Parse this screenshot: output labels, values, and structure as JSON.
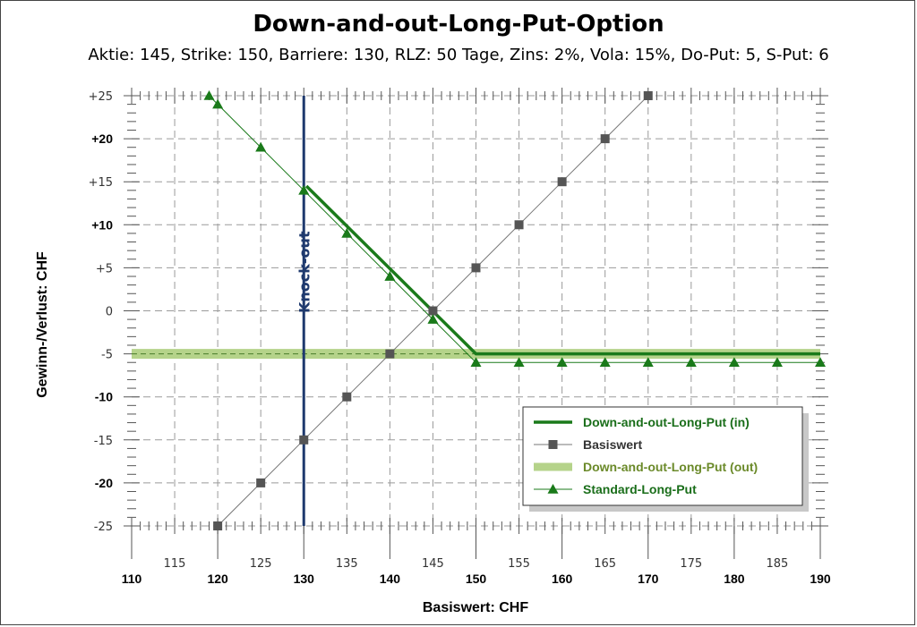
{
  "chart_data": {
    "type": "line",
    "title": "Down-and-out-Long-Put-Option",
    "subtitle": "Aktie: 145, Strike: 150, Barriere: 130, RLZ: 50 Tage, Zins: 2%, Vola: 15%, Do-Put: 5, S-Put: 6",
    "xlabel": "Basiswert: CHF",
    "ylabel": "Gewinn-/Verlust: CHF",
    "xlim": [
      110,
      190
    ],
    "ylim": [
      -25,
      25
    ],
    "x_ticks_major": [
      "110",
      "120",
      "130",
      "140",
      "150",
      "160",
      "170",
      "180",
      "190"
    ],
    "x_ticks_minor": [
      "115",
      "125",
      "135",
      "145",
      "155",
      "165",
      "175",
      "185"
    ],
    "y_ticks": [
      {
        "v": 25,
        "label": "+25",
        "bold": false
      },
      {
        "v": 20,
        "label": "+20",
        "bold": true
      },
      {
        "v": 15,
        "label": "+15",
        "bold": false
      },
      {
        "v": 10,
        "label": "+10",
        "bold": true
      },
      {
        "v": 5,
        "label": "+5",
        "bold": false
      },
      {
        "v": 0,
        "label": "0",
        "bold": false
      },
      {
        "v": -5,
        "label": "-5",
        "bold": false
      },
      {
        "v": -10,
        "label": "-10",
        "bold": true
      },
      {
        "v": -15,
        "label": "-15",
        "bold": false
      },
      {
        "v": -20,
        "label": "-20",
        "bold": true
      },
      {
        "v": -25,
        "label": "-25",
        "bold": false
      }
    ],
    "grid": true,
    "legend_position": "bottom-right",
    "barrier": {
      "x": 130,
      "label": "Knock-out",
      "color": "#1f3a6e"
    },
    "series": [
      {
        "name": "Down-and-out-Long-Put (in)",
        "style": "thick-line",
        "color": "#1a7a1a",
        "x": [
          130.3,
          150,
          190
        ],
        "y": [
          14.5,
          -5,
          -5
        ]
      },
      {
        "name": "Basiswert",
        "style": "line-square",
        "color": "#555555",
        "x": [
          120,
          125,
          130,
          135,
          140,
          145,
          150,
          155,
          160,
          165,
          170
        ],
        "y": [
          -25,
          -20,
          -15,
          -10,
          -5,
          0,
          5,
          10,
          15,
          20,
          25
        ]
      },
      {
        "name": "Down-and-out-Long-Put (out)",
        "style": "band",
        "color": "#b5d38a",
        "x": [
          110,
          190
        ],
        "y": [
          -5,
          -5
        ]
      },
      {
        "name": "Standard-Long-Put",
        "style": "line-triangle",
        "color": "#1a7a1a",
        "x": [
          119,
          120,
          125,
          130,
          135,
          140,
          145,
          150,
          155,
          160,
          165,
          170,
          175,
          180,
          185,
          190
        ],
        "y": [
          25,
          24,
          19,
          14,
          9,
          4,
          -1,
          -6,
          -6,
          -6,
          -6,
          -6,
          -6,
          -6,
          -6,
          -6
        ]
      }
    ]
  }
}
